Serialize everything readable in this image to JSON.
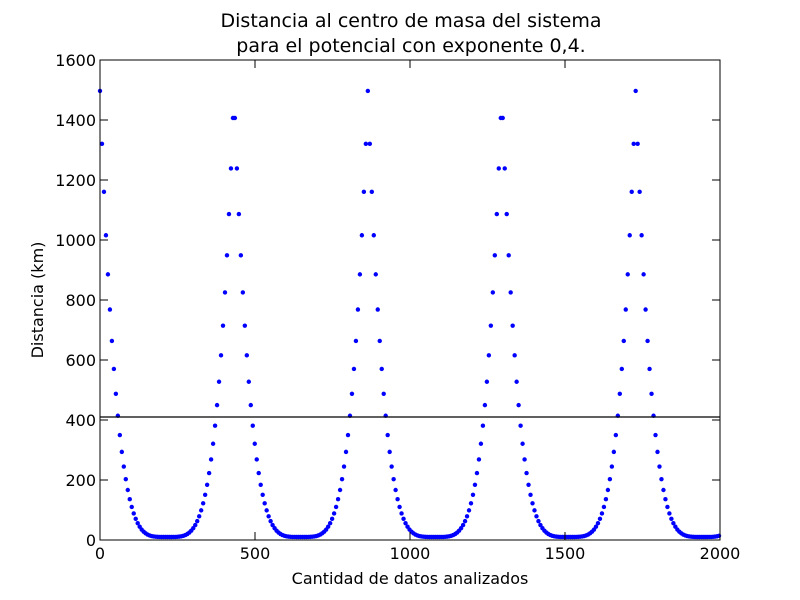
{
  "chart_data": {
    "type": "scatter",
    "title_line1": "Distancia al centro de masa del sistema",
    "title_line2": "para el potencial con exponente 0,4.",
    "xlabel": "Cantidad de datos analizados",
    "ylabel": "Distancia (km)",
    "xlim": [
      0,
      2000
    ],
    "ylim": [
      0,
      1600
    ],
    "xticks": [
      "0",
      "500",
      "1000",
      "1500",
      "2000"
    ],
    "yticks": [
      "0",
      "200",
      "400",
      "600",
      "800",
      "1000",
      "1200",
      "1400",
      "1600"
    ],
    "reference_line_y": 410,
    "point_color": "#0000ff",
    "series": [
      {
        "description": "periodic distance samples",
        "x_start": 0,
        "x_step": 6.4,
        "count": 313,
        "period": 432,
        "peak_positions": [
          0,
          432,
          864,
          1296,
          1728
        ],
        "peak_value": 1497,
        "min_value": 10
      }
    ]
  }
}
